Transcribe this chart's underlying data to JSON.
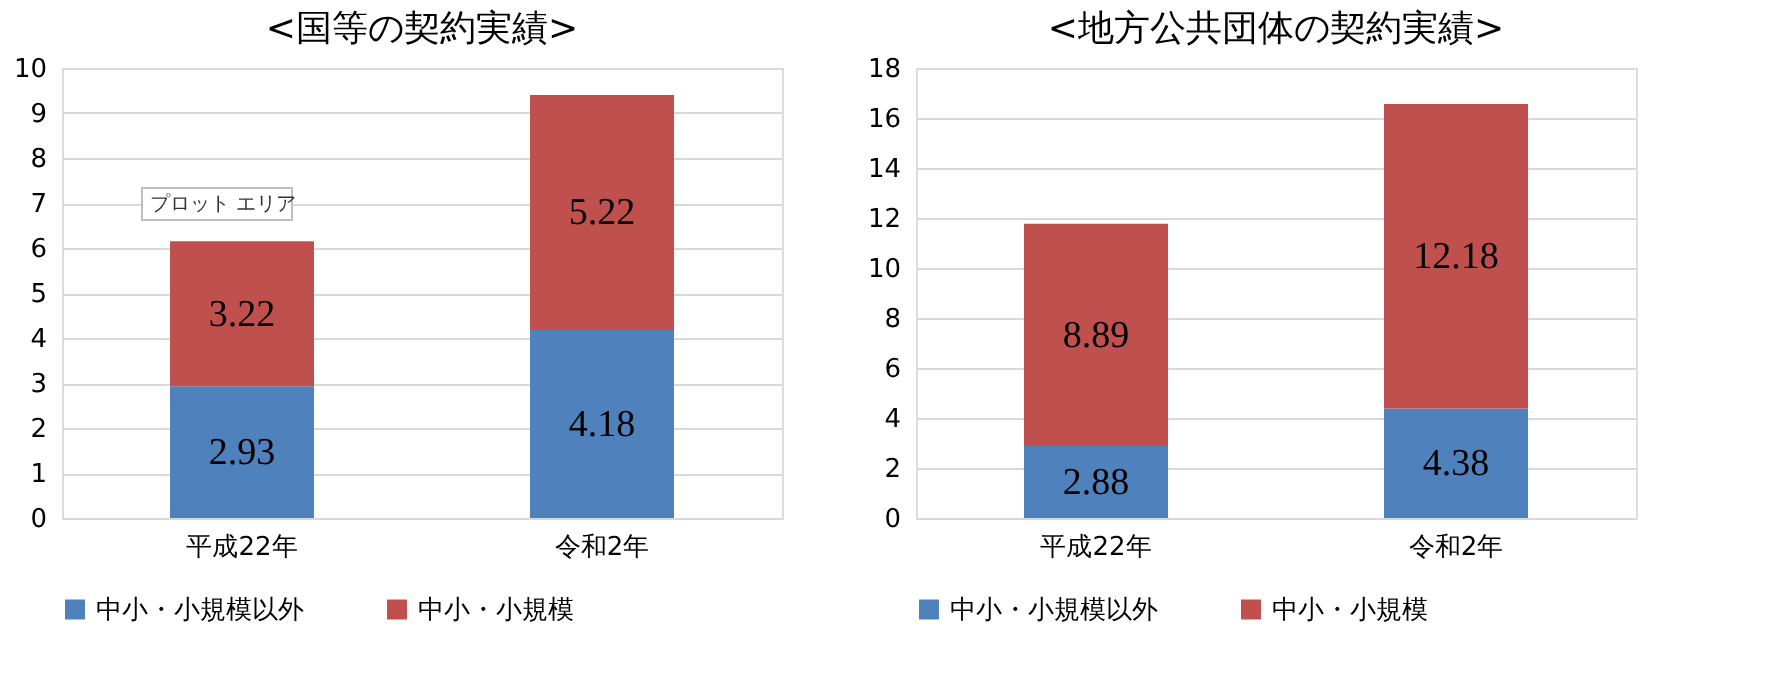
{
  "chart_data": [
    {
      "type": "bar",
      "title": "<国等の契約実績>",
      "categories": [
        "平成22年",
        "令和2年"
      ],
      "stacked": true,
      "data_labels": true,
      "ylim": [
        0,
        10
      ],
      "yticks": [
        0,
        1,
        2,
        3,
        4,
        5,
        6,
        7,
        8,
        9,
        10
      ],
      "grid": "y",
      "legend": "bottom",
      "annotations": [
        "プロット エリア"
      ],
      "series": [
        {
          "name": "中小・小規模以外",
          "color": "#4f81bd",
          "values": [
            2.93,
            4.18
          ]
        },
        {
          "name": "中小・小規模",
          "color": "#c0504d",
          "values": [
            3.22,
            5.22
          ]
        }
      ]
    },
    {
      "type": "bar",
      "title": "<地方公共団体の契約実績>",
      "categories": [
        "平成22年",
        "令和2年"
      ],
      "stacked": true,
      "data_labels": true,
      "ylim": [
        0,
        18
      ],
      "yticks": [
        0,
        2,
        4,
        6,
        8,
        10,
        12,
        14,
        16,
        18
      ],
      "grid": "y",
      "legend": "bottom",
      "series": [
        {
          "name": "中小・小規模以外",
          "color": "#4f81bd",
          "values": [
            2.88,
            4.38
          ]
        },
        {
          "name": "中小・小規模",
          "color": "#c0504d",
          "values": [
            8.89,
            12.18
          ]
        }
      ]
    }
  ]
}
